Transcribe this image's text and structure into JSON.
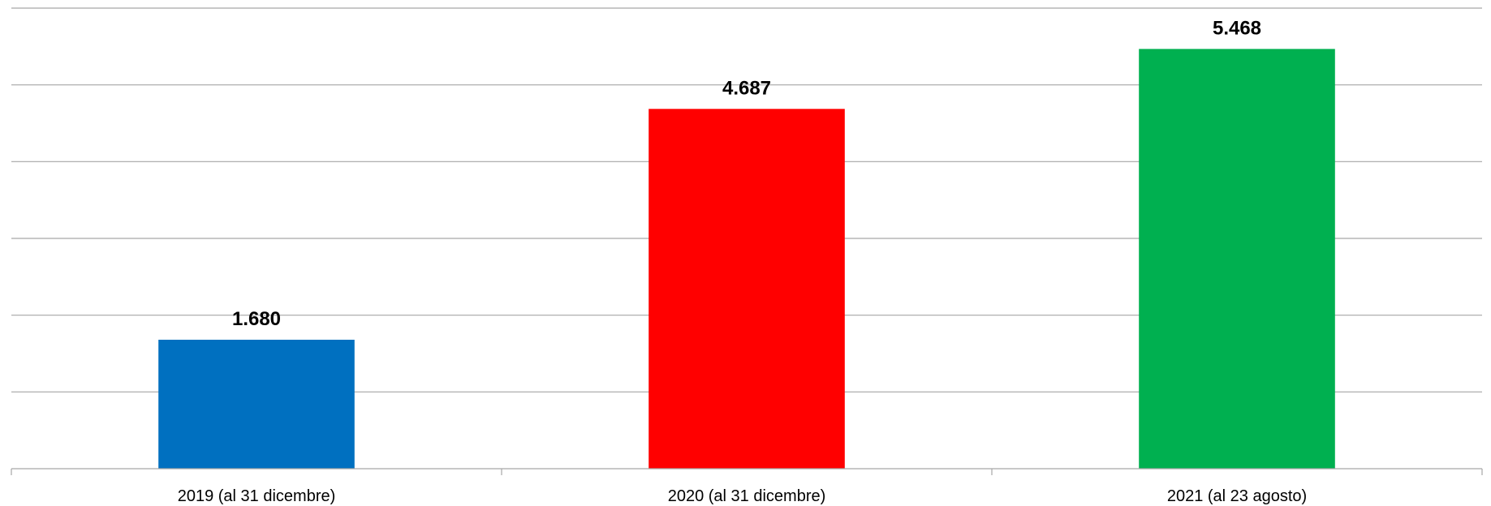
{
  "chart_data": {
    "type": "bar",
    "categories": [
      "2019 (al 31 dicembre)",
      "2020 (al 31 dicembre)",
      "2021 (al 23 agosto)"
    ],
    "values": [
      1680,
      4687,
      5468
    ],
    "data_labels": [
      "1.680",
      "4.687",
      "5.468"
    ],
    "colors": [
      "#0070c0",
      "#ff0000",
      "#00b050"
    ],
    "ylim": [
      0,
      6000
    ],
    "y_grid_step": 1000,
    "grid": true,
    "title": "",
    "xlabel": "",
    "ylabel": ""
  }
}
